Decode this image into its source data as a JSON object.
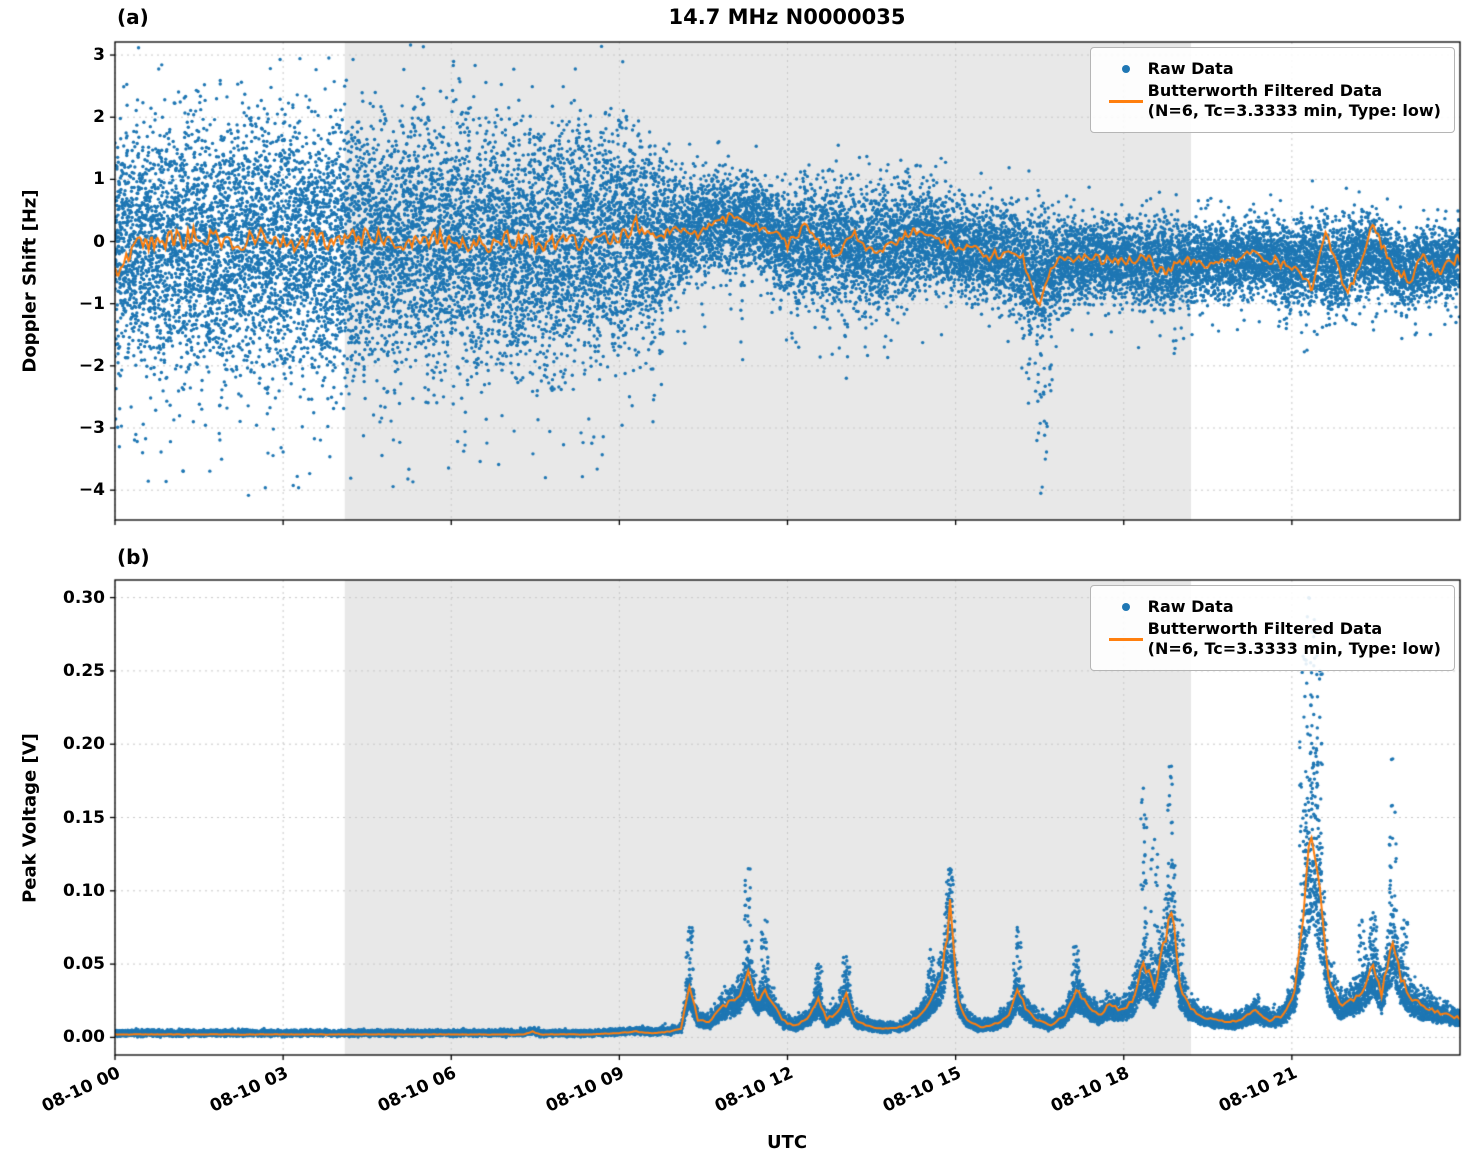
{
  "figure": {
    "title": "14.7 MHz N0000035",
    "panel_a_label": "(a)",
    "panel_b_label": "(b)",
    "xlabel": "UTC"
  },
  "colors": {
    "raw": "#1f77b4",
    "filtered": "#ff7f0e",
    "shade": "#e8e8e8",
    "grid": "#c9c9c9",
    "axis": "#000000",
    "background": "#ffffff"
  },
  "legend": {
    "raw_label": "Raw Data",
    "filtered_label": "Butterworth Filtered Data",
    "filtered_params": "(N=6, Tc=3.3333 min, Type: low)"
  },
  "x_axis": {
    "label": "UTC",
    "tick_labels": [
      "08-10 00",
      "08-10 03",
      "08-10 06",
      "08-10 09",
      "08-10 12",
      "08-10 15",
      "08-10 18",
      "08-10 21"
    ],
    "tick_hours": [
      0,
      3,
      6,
      9,
      12,
      15,
      18,
      21
    ],
    "range_hours": [
      0,
      24
    ]
  },
  "shaded_region_hours": [
    4.1,
    19.2
  ],
  "chart_data": [
    {
      "type": "scatter",
      "panel": "a",
      "title": "14.7 MHz N0000035",
      "ylabel": "Doppler Shift [Hz]",
      "ylim": [
        -4.48,
        3.21
      ],
      "yticks": [
        3,
        2,
        1,
        0,
        -1,
        -2,
        -3,
        -4
      ],
      "ytick_labels": [
        "3",
        "2",
        "1",
        "0",
        "−1",
        "−2",
        "−3",
        "−4"
      ],
      "grid": true,
      "legend_position": "upper right",
      "series": [
        {
          "name": "Raw Data",
          "style": "scatter",
          "color": "#1f77b4",
          "envelope": [
            [
              0,
              -0.15,
              1.55
            ],
            [
              1,
              -0.1,
              1.65
            ],
            [
              2,
              -0.1,
              1.7
            ],
            [
              3,
              -0.1,
              1.65
            ],
            [
              4,
              -0.1,
              1.7
            ],
            [
              5,
              -0.05,
              1.65
            ],
            [
              6,
              -0.05,
              1.6
            ],
            [
              7,
              0,
              1.6
            ],
            [
              8,
              -0.05,
              1.6
            ],
            [
              9,
              0,
              1.5
            ],
            [
              9.5,
              0.1,
              1.3
            ],
            [
              9.8,
              0.1,
              1.0
            ],
            [
              10.2,
              0.15,
              0.75
            ],
            [
              10.8,
              0.3,
              0.65
            ],
            [
              11.2,
              0.35,
              0.6
            ],
            [
              11.6,
              0.2,
              0.65
            ],
            [
              12,
              0,
              0.75
            ],
            [
              12.5,
              -0.05,
              0.85
            ],
            [
              13,
              -0.05,
              0.8
            ],
            [
              13.5,
              -0.1,
              0.85
            ],
            [
              14,
              0,
              0.8
            ],
            [
              14.5,
              0.1,
              0.7
            ],
            [
              15,
              -0.1,
              0.6
            ],
            [
              15.5,
              -0.15,
              0.65
            ],
            [
              16,
              -0.25,
              0.7
            ],
            [
              16.5,
              -0.5,
              0.8
            ],
            [
              17,
              -0.3,
              0.6
            ],
            [
              17.5,
              -0.3,
              0.55
            ],
            [
              18,
              -0.3,
              0.55
            ],
            [
              18.5,
              -0.35,
              0.6
            ],
            [
              19,
              -0.35,
              0.55
            ],
            [
              19.5,
              -0.3,
              0.5
            ],
            [
              20,
              -0.3,
              0.5
            ],
            [
              20.5,
              -0.25,
              0.5
            ],
            [
              21,
              -0.4,
              0.55
            ],
            [
              21.4,
              -0.3,
              0.65
            ],
            [
              21.8,
              -0.45,
              0.6
            ],
            [
              22.2,
              -0.2,
              0.55
            ],
            [
              22.6,
              -0.25,
              0.5
            ],
            [
              23,
              -0.5,
              0.5
            ],
            [
              23.4,
              -0.3,
              0.5
            ],
            [
              23.8,
              -0.3,
              0.5
            ],
            [
              24,
              -0.3,
              0.5
            ]
          ],
          "outliers": [
            [
              9.6,
              -2.9
            ],
            [
              9.75,
              -2.3
            ],
            [
              11.2,
              -1.9
            ],
            [
              12.2,
              -1.7
            ],
            [
              13.05,
              -2.2
            ],
            [
              16.3,
              -2.6
            ],
            [
              16.45,
              -3.2
            ],
            [
              16.52,
              -4.05
            ],
            [
              16.6,
              -3.5
            ],
            [
              16.7,
              -2.4
            ],
            [
              18.9,
              -1.8
            ],
            [
              20.9,
              -1.4
            ],
            [
              23.2,
              -1.5
            ]
          ]
        },
        {
          "name": "Butterworth Filtered Data (N=6, Tc=3.3333 min, Type: low)",
          "style": "line",
          "color": "#ff7f0e",
          "keypoints": [
            [
              0,
              -0.55
            ],
            [
              0.2,
              -0.2
            ],
            [
              0.5,
              -0.05
            ],
            [
              1,
              0.0
            ],
            [
              1.5,
              0.1
            ],
            [
              2,
              -0.05
            ],
            [
              2.5,
              0.1
            ],
            [
              3,
              -0.1
            ],
            [
              3.5,
              0.05
            ],
            [
              4,
              0.0
            ],
            [
              4.5,
              0.1
            ],
            [
              5,
              -0.05
            ],
            [
              5.5,
              0.05
            ],
            [
              6,
              0.0
            ],
            [
              6.5,
              -0.05
            ],
            [
              7,
              0.05
            ],
            [
              7.5,
              0.0
            ],
            [
              8,
              -0.05
            ],
            [
              8.5,
              0.0
            ],
            [
              9,
              0.05
            ],
            [
              9.4,
              0.3
            ],
            [
              9.7,
              0.1
            ],
            [
              10,
              0.2
            ],
            [
              10.4,
              0.1
            ],
            [
              10.8,
              0.35
            ],
            [
              11.1,
              0.45
            ],
            [
              11.4,
              0.3
            ],
            [
              11.7,
              0.15
            ],
            [
              12,
              -0.05
            ],
            [
              12.3,
              0.25
            ],
            [
              12.6,
              -0.1
            ],
            [
              12.9,
              -0.2
            ],
            [
              13.2,
              0.1
            ],
            [
              13.5,
              -0.15
            ],
            [
              13.8,
              -0.05
            ],
            [
              14.1,
              0.1
            ],
            [
              14.4,
              0.2
            ],
            [
              14.7,
              0.0
            ],
            [
              15,
              -0.1
            ],
            [
              15.3,
              -0.05
            ],
            [
              15.6,
              -0.25
            ],
            [
              15.9,
              -0.15
            ],
            [
              16.2,
              -0.3
            ],
            [
              16.5,
              -1.05
            ],
            [
              16.7,
              -0.45
            ],
            [
              16.9,
              -0.25
            ],
            [
              17.2,
              -0.3
            ],
            [
              17.5,
              -0.25
            ],
            [
              17.8,
              -0.35
            ],
            [
              18.1,
              -0.3
            ],
            [
              18.4,
              -0.25
            ],
            [
              18.7,
              -0.5
            ],
            [
              19,
              -0.35
            ],
            [
              19.3,
              -0.3
            ],
            [
              19.6,
              -0.4
            ],
            [
              20,
              -0.3
            ],
            [
              20.4,
              -0.2
            ],
            [
              20.8,
              -0.35
            ],
            [
              21.1,
              -0.5
            ],
            [
              21.35,
              -0.75
            ],
            [
              21.6,
              0.15
            ],
            [
              21.8,
              -0.4
            ],
            [
              22,
              -0.85
            ],
            [
              22.2,
              -0.35
            ],
            [
              22.45,
              0.25
            ],
            [
              22.7,
              -0.2
            ],
            [
              22.9,
              -0.5
            ],
            [
              23.1,
              -0.65
            ],
            [
              23.35,
              -0.2
            ],
            [
              23.6,
              -0.5
            ],
            [
              23.8,
              -0.35
            ],
            [
              24,
              -0.25
            ]
          ]
        }
      ]
    },
    {
      "type": "scatter",
      "panel": "b",
      "ylabel": "Peak Voltage [V]",
      "ylim": [
        -0.012,
        0.312
      ],
      "yticks": [
        0.3,
        0.25,
        0.2,
        0.15,
        0.1,
        0.05,
        0.0
      ],
      "ytick_labels": [
        "0.30",
        "0.25",
        "0.20",
        "0.15",
        "0.10",
        "0.05",
        "0.00"
      ],
      "grid": true,
      "legend_position": "upper right",
      "series": [
        {
          "name": "Raw Data",
          "style": "scatter",
          "color": "#1f77b4",
          "peaks": [
            [
              10.25,
              0.075
            ],
            [
              11.3,
              0.115
            ],
            [
              11.6,
              0.08
            ],
            [
              12.55,
              0.05
            ],
            [
              13.05,
              0.055
            ],
            [
              14.55,
              0.06
            ],
            [
              14.9,
              0.115
            ],
            [
              16.1,
              0.075
            ],
            [
              17.15,
              0.062
            ],
            [
              18.35,
              0.17
            ],
            [
              18.55,
              0.135
            ],
            [
              18.85,
              0.185
            ],
            [
              19.0,
              0.08
            ],
            [
              21.2,
              0.26
            ],
            [
              21.3,
              0.3
            ],
            [
              21.4,
              0.285
            ],
            [
              21.5,
              0.25
            ],
            [
              22.25,
              0.08
            ],
            [
              22.45,
              0.085
            ],
            [
              22.8,
              0.19
            ],
            [
              23.0,
              0.08
            ]
          ]
        },
        {
          "name": "Butterworth Filtered Data (N=6, Tc=3.3333 min, Type: low)",
          "style": "line",
          "color": "#ff7f0e",
          "keypoints": [
            [
              0,
              0.002
            ],
            [
              2,
              0.002
            ],
            [
              4,
              0.002
            ],
            [
              6,
              0.002
            ],
            [
              7.3,
              0.002
            ],
            [
              7.45,
              0.004
            ],
            [
              7.6,
              0.002
            ],
            [
              8.5,
              0.002
            ],
            [
              9,
              0.003
            ],
            [
              9.3,
              0.004
            ],
            [
              9.6,
              0.003
            ],
            [
              9.9,
              0.004
            ],
            [
              10.1,
              0.006
            ],
            [
              10.25,
              0.035
            ],
            [
              10.4,
              0.012
            ],
            [
              10.6,
              0.01
            ],
            [
              10.8,
              0.02
            ],
            [
              11,
              0.025
            ],
            [
              11.15,
              0.03
            ],
            [
              11.3,
              0.048
            ],
            [
              11.45,
              0.025
            ],
            [
              11.6,
              0.032
            ],
            [
              11.75,
              0.022
            ],
            [
              11.9,
              0.012
            ],
            [
              12.1,
              0.008
            ],
            [
              12.35,
              0.012
            ],
            [
              12.55,
              0.025
            ],
            [
              12.7,
              0.012
            ],
            [
              12.9,
              0.018
            ],
            [
              13.05,
              0.028
            ],
            [
              13.2,
              0.012
            ],
            [
              13.5,
              0.007
            ],
            [
              13.8,
              0.006
            ],
            [
              14.1,
              0.008
            ],
            [
              14.35,
              0.015
            ],
            [
              14.55,
              0.025
            ],
            [
              14.75,
              0.04
            ],
            [
              14.9,
              0.088
            ],
            [
              15.05,
              0.025
            ],
            [
              15.2,
              0.012
            ],
            [
              15.45,
              0.007
            ],
            [
              15.7,
              0.009
            ],
            [
              15.95,
              0.015
            ],
            [
              16.1,
              0.032
            ],
            [
              16.25,
              0.02
            ],
            [
              16.45,
              0.012
            ],
            [
              16.7,
              0.008
            ],
            [
              16.95,
              0.015
            ],
            [
              17.15,
              0.032
            ],
            [
              17.35,
              0.022
            ],
            [
              17.55,
              0.015
            ],
            [
              17.75,
              0.022
            ],
            [
              17.95,
              0.018
            ],
            [
              18.15,
              0.025
            ],
            [
              18.35,
              0.05
            ],
            [
              18.55,
              0.035
            ],
            [
              18.7,
              0.06
            ],
            [
              18.85,
              0.09
            ],
            [
              19,
              0.035
            ],
            [
              19.15,
              0.022
            ],
            [
              19.35,
              0.015
            ],
            [
              19.6,
              0.012
            ],
            [
              19.85,
              0.01
            ],
            [
              20.1,
              0.012
            ],
            [
              20.35,
              0.018
            ],
            [
              20.6,
              0.012
            ],
            [
              20.85,
              0.015
            ],
            [
              21.05,
              0.03
            ],
            [
              21.2,
              0.08
            ],
            [
              21.35,
              0.145
            ],
            [
              21.5,
              0.1
            ],
            [
              21.65,
              0.04
            ],
            [
              21.85,
              0.022
            ],
            [
              22.05,
              0.025
            ],
            [
              22.25,
              0.032
            ],
            [
              22.45,
              0.048
            ],
            [
              22.6,
              0.03
            ],
            [
              22.8,
              0.068
            ],
            [
              22.95,
              0.04
            ],
            [
              23.1,
              0.028
            ],
            [
              23.3,
              0.022
            ],
            [
              23.55,
              0.018
            ],
            [
              23.8,
              0.015
            ],
            [
              24,
              0.013
            ]
          ]
        }
      ]
    }
  ]
}
